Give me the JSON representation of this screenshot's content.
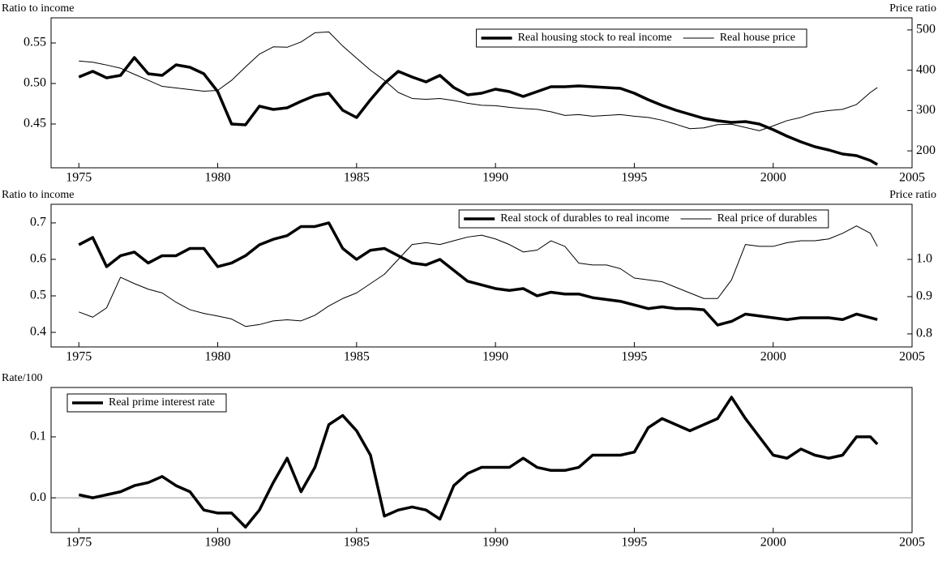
{
  "chart_data": [
    {
      "type": "line",
      "y_label": "Ratio to income",
      "y2_label": "Price ratio",
      "x": [
        1975,
        1975.5,
        1976,
        1976.5,
        1977,
        1977.5,
        1978,
        1978.5,
        1979,
        1979.5,
        1980,
        1980.5,
        1981,
        1981.5,
        1982,
        1982.5,
        1983,
        1983.5,
        1984,
        1984.5,
        1985,
        1985.5,
        1986,
        1986.5,
        1987,
        1987.5,
        1988,
        1988.5,
        1989,
        1989.5,
        1990,
        1990.5,
        1991,
        1991.5,
        1992,
        1992.5,
        1993,
        1993.5,
        1994,
        1994.5,
        1995,
        1995.5,
        1996,
        1996.5,
        1997,
        1997.5,
        1998,
        1998.5,
        1999,
        1999.5,
        2000,
        2000.5,
        2001,
        2001.5,
        2002,
        2002.5,
        2003,
        2003.5,
        2003.75
      ],
      "xlim": [
        1974,
        2005
      ],
      "xticks": [
        1975,
        1980,
        1985,
        1990,
        1995,
        2000,
        2005
      ],
      "ylim": [
        0.396,
        0.581
      ],
      "yticks": [
        0.55,
        {
          "value": 0.5,
          "label": "0.50"
        },
        0.45
      ],
      "y2lim": [
        158,
        530
      ],
      "y2ticks": [
        500,
        400,
        300,
        200
      ],
      "legend": "top-right",
      "series": [
        {
          "name": "Real housing stock to real income",
          "color": "#000000",
          "width": 3.5,
          "values": [
            0.508,
            0.515,
            0.507,
            0.51,
            0.532,
            0.512,
            0.51,
            0.523,
            0.52,
            0.512,
            0.49,
            0.45,
            0.449,
            0.472,
            0.468,
            0.47,
            0.478,
            0.485,
            0.488,
            0.467,
            0.458,
            0.48,
            0.5,
            0.515,
            0.508,
            0.502,
            0.51,
            0.495,
            0.486,
            0.488,
            0.493,
            0.49,
            0.484,
            0.49,
            0.496,
            0.496,
            0.497,
            0.496,
            0.495,
            0.494,
            0.488,
            0.48,
            0.473,
            0.467,
            0.462,
            0.457,
            0.454,
            0.452,
            0.453,
            0.45,
            0.443,
            0.435,
            0.428,
            0.422,
            0.418,
            0.413,
            0.411,
            0.405,
            0.4
          ]
        },
        {
          "name": "Real house price",
          "color": "#000000",
          "width": 1,
          "axis": "y2",
          "values": [
            423,
            420,
            413,
            405,
            390,
            375,
            360,
            356,
            352,
            348,
            350,
            375,
            408,
            440,
            458,
            457,
            470,
            493,
            495,
            460,
            430,
            400,
            375,
            345,
            330,
            328,
            330,
            325,
            318,
            313,
            312,
            308,
            305,
            303,
            297,
            288,
            290,
            286,
            288,
            290,
            286,
            283,
            276,
            266,
            255,
            257,
            265,
            266,
            258,
            250,
            262,
            275,
            283,
            295,
            300,
            303,
            315,
            345,
            357
          ]
        }
      ]
    },
    {
      "type": "line",
      "y_label": "Ratio to income",
      "y2_label": "Price ratio",
      "x": [
        1975,
        1975.5,
        1976,
        1976.5,
        1977,
        1977.5,
        1978,
        1978.5,
        1979,
        1979.5,
        1980,
        1980.5,
        1981,
        1981.5,
        1982,
        1982.5,
        1983,
        1983.5,
        1984,
        1984.5,
        1985,
        1985.5,
        1986,
        1986.5,
        1987,
        1987.5,
        1988,
        1988.5,
        1989,
        1989.5,
        1990,
        1990.5,
        1991,
        1991.5,
        1992,
        1992.5,
        1993,
        1993.5,
        1994,
        1994.5,
        1995,
        1995.5,
        1996,
        1996.5,
        1997,
        1997.5,
        1998,
        1998.5,
        1999,
        1999.5,
        2000,
        2000.5,
        2001,
        2001.5,
        2002,
        2002.5,
        2003,
        2003.5,
        2003.75
      ],
      "xlim": [
        1974,
        2005
      ],
      "xticks": [
        1975,
        1980,
        1985,
        1990,
        1995,
        2000,
        2005
      ],
      "ylim": [
        0.36,
        0.751
      ],
      "yticks": [
        0.7,
        0.6,
        0.5,
        0.4
      ],
      "y2lim": [
        0.765,
        1.148
      ],
      "y2ticks": [
        {
          "value": 1,
          "label": "1.0"
        },
        0.9,
        0.8
      ],
      "legend": "top-center",
      "series": [
        {
          "name": "Real stock of durables to real income",
          "color": "#000000",
          "width": 3.5,
          "values": [
            0.64,
            0.66,
            0.58,
            0.61,
            0.62,
            0.59,
            0.61,
            0.61,
            0.63,
            0.63,
            0.58,
            0.59,
            0.61,
            0.64,
            0.655,
            0.665,
            0.69,
            0.69,
            0.7,
            0.63,
            0.6,
            0.625,
            0.63,
            0.61,
            0.59,
            0.585,
            0.6,
            0.57,
            0.54,
            0.53,
            0.52,
            0.515,
            0.52,
            0.5,
            0.51,
            0.505,
            0.505,
            0.495,
            0.49,
            0.485,
            0.475,
            0.465,
            0.47,
            0.465,
            0.465,
            0.462,
            0.42,
            0.43,
            0.45,
            0.445,
            0.44,
            0.435,
            0.44,
            0.44,
            0.44,
            0.435,
            0.45,
            0.44,
            0.435
          ]
        },
        {
          "name": "Real price of durables",
          "color": "#000000",
          "width": 1,
          "axis": "y2",
          "values": [
            0.859,
            0.845,
            0.87,
            0.952,
            0.935,
            0.92,
            0.91,
            0.885,
            0.865,
            0.855,
            0.848,
            0.84,
            0.82,
            0.825,
            0.835,
            0.838,
            0.835,
            0.85,
            0.875,
            0.895,
            0.91,
            0.935,
            0.96,
            1.0,
            1.04,
            1.045,
            1.04,
            1.05,
            1.06,
            1.065,
            1.055,
            1.04,
            1.02,
            1.025,
            1.05,
            1.035,
            0.99,
            0.985,
            0.985,
            0.975,
            0.95,
            0.945,
            0.94,
            0.925,
            0.91,
            0.895,
            0.895,
            0.945,
            1.04,
            1.035,
            1.035,
            1.045,
            1.05,
            1.05,
            1.055,
            1.07,
            1.09,
            1.07,
            1.035
          ]
        }
      ]
    },
    {
      "type": "line",
      "y_label": "Rate/100",
      "x": [
        1975,
        1975.5,
        1976,
        1976.5,
        1977,
        1977.5,
        1978,
        1978.5,
        1979,
        1979.5,
        1980,
        1980.5,
        1981,
        1981.5,
        1982,
        1982.5,
        1983,
        1983.5,
        1984,
        1984.5,
        1985,
        1985.5,
        1986,
        1986.5,
        1987,
        1987.5,
        1988,
        1988.5,
        1989,
        1989.5,
        1990,
        1990.5,
        1991,
        1991.5,
        1992,
        1992.5,
        1993,
        1993.5,
        1994,
        1994.5,
        1995,
        1995.5,
        1996,
        1996.5,
        1997,
        1997.5,
        1998,
        1998.5,
        1999,
        1999.5,
        2000,
        2000.5,
        2001,
        2001.5,
        2002,
        2002.5,
        2003,
        2003.5,
        2003.75
      ],
      "xlim": [
        1974,
        2005
      ],
      "xticks": [
        1975,
        1980,
        1985,
        1990,
        1995,
        2000,
        2005
      ],
      "ylim": [
        -0.057,
        0.181
      ],
      "yticks": [
        0.1,
        {
          "value": 0,
          "label": "0.0"
        }
      ],
      "reference_line": 0,
      "legend": "top-left",
      "series": [
        {
          "name": "Real prime interest rate",
          "color": "#000000",
          "width": 3.5,
          "values": [
            0.005,
            0,
            0.005,
            0.01,
            0.02,
            0.025,
            0.035,
            0.02,
            0.01,
            -0.02,
            -0.025,
            -0.025,
            -0.048,
            -0.02,
            0.025,
            0.065,
            0.01,
            0.05,
            0.12,
            0.135,
            0.11,
            0.07,
            -0.03,
            -0.02,
            -0.015,
            -0.02,
            -0.035,
            0.02,
            0.04,
            0.05,
            0.05,
            0.05,
            0.065,
            0.05,
            0.045,
            0.045,
            0.05,
            0.07,
            0.07,
            0.07,
            0.075,
            0.115,
            0.13,
            0.12,
            0.11,
            0.12,
            0.13,
            0.165,
            0.13,
            0.1,
            0.07,
            0.065,
            0.08,
            0.07,
            0.065,
            0.07,
            0.1,
            0.1,
            0.088
          ]
        }
      ]
    }
  ]
}
